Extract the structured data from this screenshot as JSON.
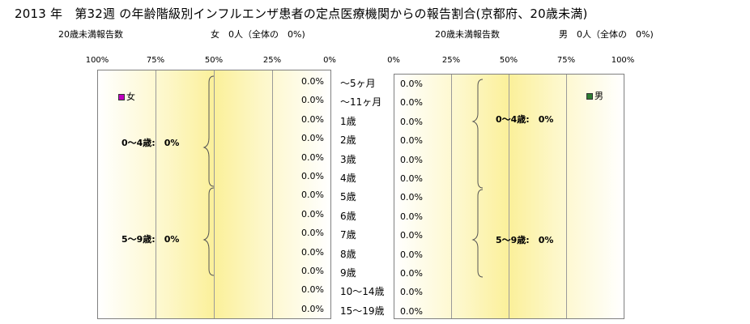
{
  "title": "2013 年　第32週 の年齢階級別インフルエンザ患者の定点医療機関からの報告割合(京都府、20歳未満)",
  "female": {
    "count_label": "20歳未満報告数",
    "summary": "女　0人（全体の　0%)",
    "legend": "女",
    "legend_color": "#c000c0",
    "ticks": [
      "100%",
      "75%",
      "50%",
      "25%",
      "0%"
    ],
    "values": [
      "0.0%",
      "0.0%",
      "0.0%",
      "0.0%",
      "0.0%",
      "0.0%",
      "0.0%",
      "0.0%",
      "0.0%",
      "0.0%",
      "0.0%",
      "0.0%",
      "0.0%"
    ],
    "group1": "0～4歳:　0%",
    "group2": "5～9歳:　0%"
  },
  "male": {
    "count_label": "20歳未満報告数",
    "summary": "男　0人（全体の　0%)",
    "legend": "男",
    "legend_color": "#2e7d32",
    "ticks": [
      "0%",
      "25%",
      "50%",
      "75%",
      "100%"
    ],
    "values": [
      "0.0%",
      "0.0%",
      "0.0%",
      "0.0%",
      "0.0%",
      "0.0%",
      "0.0%",
      "0.0%",
      "0.0%",
      "0.0%",
      "0.0%",
      "0.0%",
      "0.0%"
    ],
    "group1": "0～4歳:　0%",
    "group2": "5～9歳:　0%"
  },
  "age_labels": [
    "～5ヶ月",
    "～11ヶ月",
    "1歳",
    "2歳",
    "3歳",
    "4歳",
    "5歳",
    "6歳",
    "7歳",
    "8歳",
    "9歳",
    "10～14歳",
    "15～19歳"
  ],
  "chart_data": [
    {
      "type": "bar",
      "orientation": "horizontal",
      "categories": [
        "～5ヶ月",
        "～11ヶ月",
        "1歳",
        "2歳",
        "3歳",
        "4歳",
        "5歳",
        "6歳",
        "7歳",
        "8歳",
        "9歳",
        "10～14歳",
        "15～19歳"
      ],
      "series": [
        {
          "name": "女",
          "values": [
            0,
            0,
            0,
            0,
            0,
            0,
            0,
            0,
            0,
            0,
            0,
            0,
            0
          ]
        }
      ],
      "xlim": [
        0,
        100
      ],
      "x_reversed": true,
      "grid": true,
      "legend": "top-left"
    },
    {
      "type": "bar",
      "orientation": "horizontal",
      "categories": [
        "～5ヶ月",
        "～11ヶ月",
        "1歳",
        "2歳",
        "3歳",
        "4歳",
        "5歳",
        "6歳",
        "7歳",
        "8歳",
        "9歳",
        "10～14歳",
        "15～19歳"
      ],
      "series": [
        {
          "name": "男",
          "values": [
            0,
            0,
            0,
            0,
            0,
            0,
            0,
            0,
            0,
            0,
            0,
            0,
            0
          ]
        }
      ],
      "xlim": [
        0,
        100
      ],
      "x_reversed": false,
      "grid": true,
      "legend": "top-right"
    }
  ]
}
